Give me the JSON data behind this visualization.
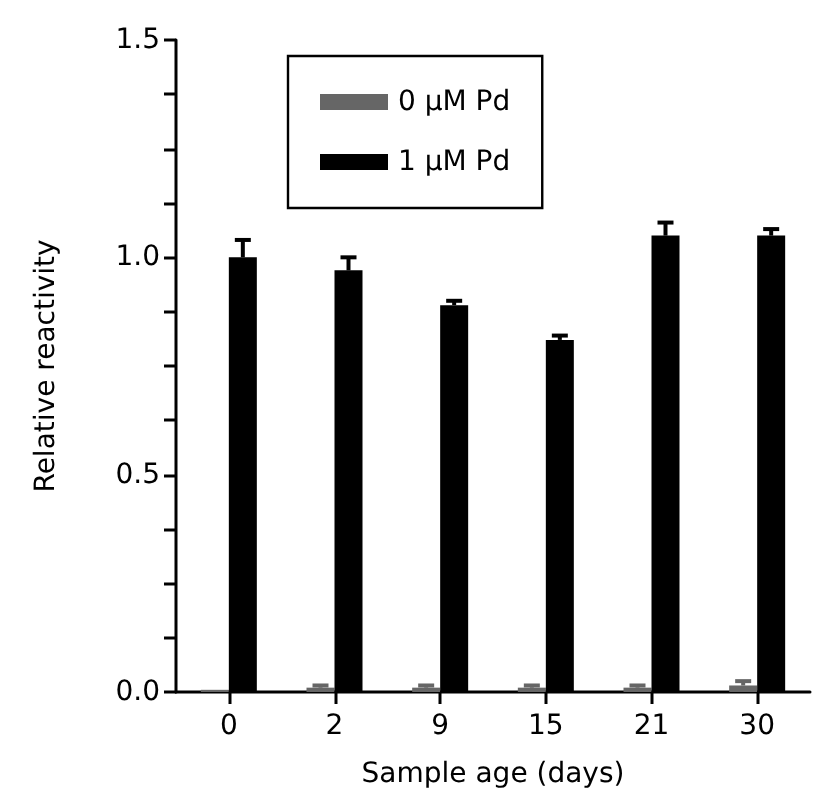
{
  "chart_data": {
    "type": "bar",
    "xlabel": "Sample age (days)",
    "ylabel": "Relative reactivity",
    "categories": [
      "0",
      "2",
      "9",
      "15",
      "21",
      "30"
    ],
    "series": [
      {
        "name": "0 µM Pd",
        "color": "#666666",
        "values": [
          0.005,
          0.01,
          0.01,
          0.01,
          0.01,
          0.015
        ],
        "errors": [
          null,
          [
            0.01,
            0.015
          ],
          [
            0.01,
            0.015
          ],
          [
            0.01,
            0.015
          ],
          [
            0.01,
            0.015
          ],
          [
            0.015,
            0.025
          ]
        ]
      },
      {
        "name": "1 µM Pd",
        "color": "#000000",
        "values": [
          1.0,
          0.97,
          0.89,
          0.81,
          1.05,
          1.05
        ],
        "errors": [
          [
            1.0,
            1.04
          ],
          [
            0.97,
            1.0
          ],
          [
            0.89,
            0.9
          ],
          [
            0.81,
            0.82
          ],
          [
            1.05,
            1.08
          ],
          [
            1.05,
            1.065
          ]
        ]
      }
    ],
    "ylim": [
      0,
      1.5
    ],
    "yticks": [
      {
        "value": 0,
        "label": "0.0"
      },
      {
        "value": 0.125,
        "label": null
      },
      {
        "value": 0.25,
        "label": null
      },
      {
        "value": 0.375,
        "label": null
      },
      {
        "value": 0.5,
        "label": "0.5"
      },
      {
        "value": 0.625,
        "label": null
      },
      {
        "value": 0.75,
        "label": null
      },
      {
        "value": 0.875,
        "label": null
      },
      {
        "value": 1,
        "label": "1.0"
      },
      {
        "value": 1.125,
        "label": null
      },
      {
        "value": 1.25,
        "label": null
      },
      {
        "value": 1.375,
        "label": null
      },
      {
        "value": 1.5,
        "label": "1.5"
      }
    ],
    "grid": false,
    "legend": "top"
  }
}
